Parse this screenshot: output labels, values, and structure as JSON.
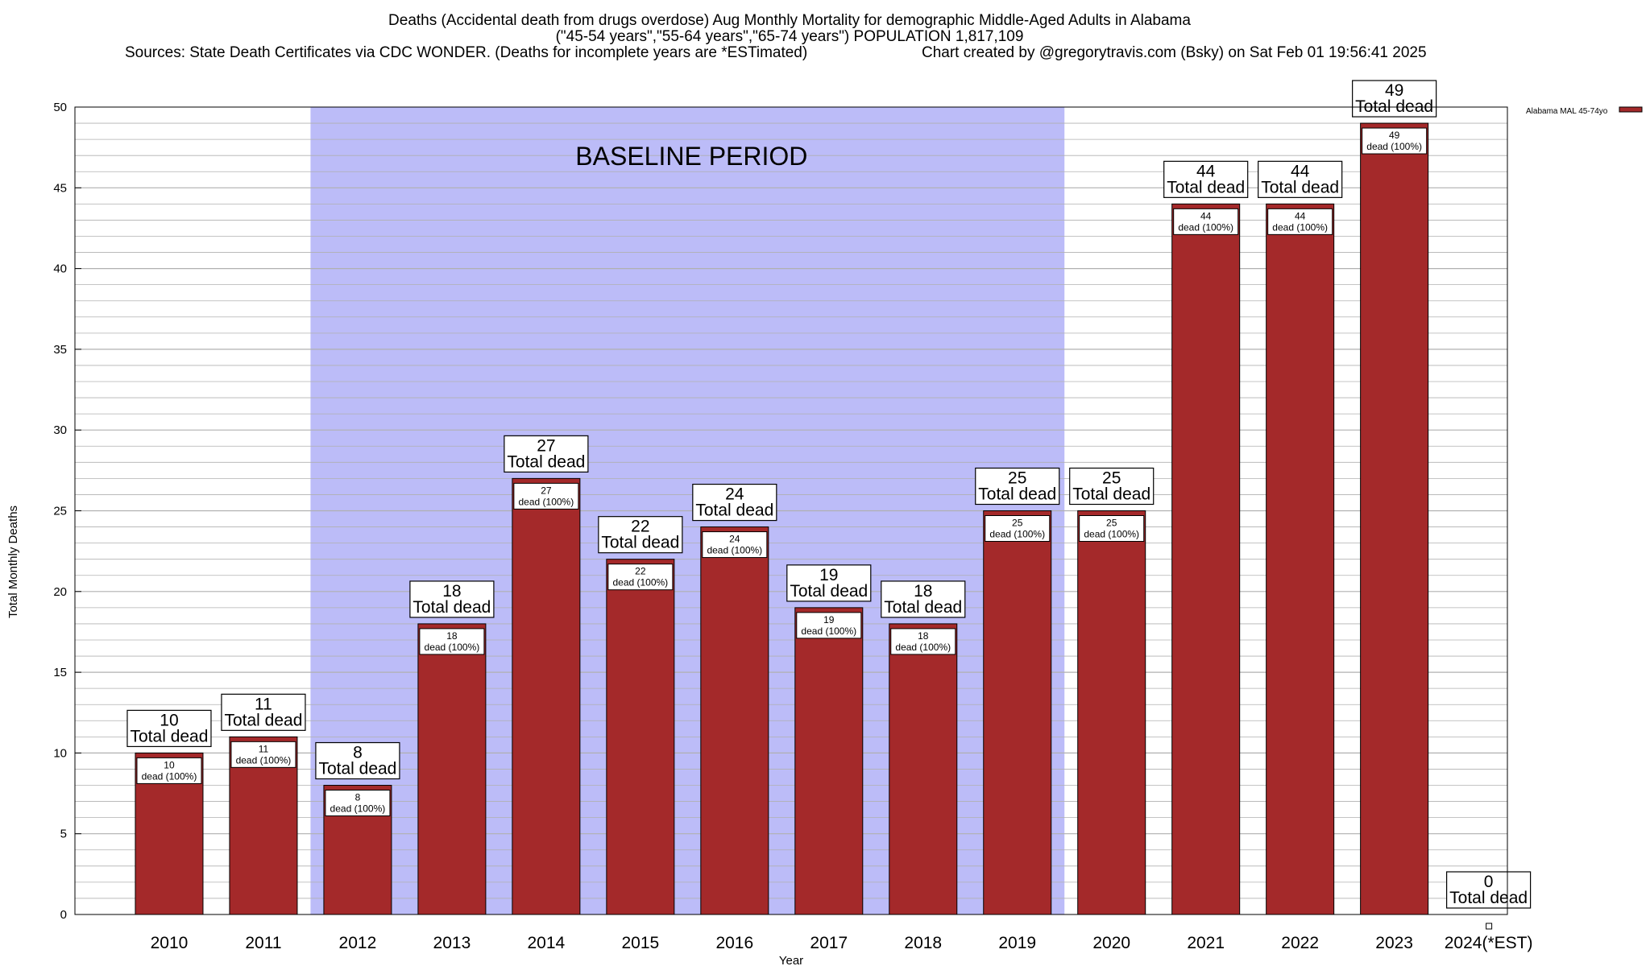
{
  "chart_data": {
    "type": "bar",
    "title_lines": [
      "Deaths (Accidental death from drugs overdose) Aug Monthly Mortality for demographic Middle-Aged Adults in Alabama",
      "(\"45-54 years\",\"55-64 years\",\"65-74 years\") POPULATION 1,817,109"
    ],
    "sources_text": "Sources: State Death Certificates via CDC WONDER. (Deaths for incomplete years are *ESTimated)",
    "credit_text": "Chart created by @gregorytravis.com (Bsky) on Sat Feb 01 19:56:41 2025",
    "xlabel": "Year",
    "ylabel": "Total Monthly Deaths",
    "ylim": [
      0,
      50
    ],
    "y_ticks": [
      0,
      5,
      10,
      15,
      20,
      25,
      30,
      35,
      40,
      45,
      50
    ],
    "categories": [
      "2010",
      "2011",
      "2012",
      "2013",
      "2014",
      "2015",
      "2016",
      "2017",
      "2018",
      "2019",
      "2020",
      "2021",
      "2022",
      "2023",
      "2024(*EST)"
    ],
    "series": [
      {
        "name": "Alabama MAL 45-74yo",
        "values": [
          10,
          11,
          8,
          18,
          27,
          22,
          24,
          19,
          18,
          25,
          25,
          44,
          44,
          49,
          0
        ]
      }
    ],
    "total_label_suffix": "Total dead",
    "inner_label_suffix": "dead (100%)",
    "baseline_period": {
      "label": "BASELINE PERIOD",
      "start_category": "2012",
      "end_category": "2019"
    },
    "legend_position": "top-right",
    "grid": true,
    "colors": {
      "bar": "#a4292a",
      "baseline": "#bcbcf8",
      "grid": "#b0b0b0"
    }
  }
}
